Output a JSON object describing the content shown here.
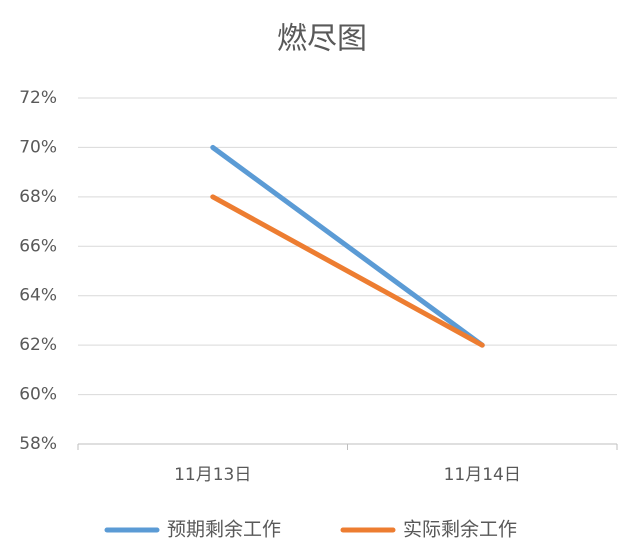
{
  "chart_data": {
    "type": "line",
    "title": "燃尽图",
    "categories": [
      "11月13日",
      "11月14日"
    ],
    "series": [
      {
        "name": "预期剩余工作",
        "color": "#5b9bd5",
        "values": [
          70,
          62
        ]
      },
      {
        "name": "实际剩余工作",
        "color": "#ed7d31",
        "values": [
          68,
          62
        ]
      }
    ],
    "ylim": [
      58,
      72
    ],
    "yticks": [
      {
        "value": 58,
        "label": "58%"
      },
      {
        "value": 60,
        "label": "60%"
      },
      {
        "value": 62,
        "label": "62%"
      },
      {
        "value": 64,
        "label": "64%"
      },
      {
        "value": 66,
        "label": "66%"
      },
      {
        "value": 68,
        "label": "68%"
      },
      {
        "value": 70,
        "label": "70%"
      },
      {
        "value": 72,
        "label": "72%"
      }
    ],
    "grid": true,
    "legend": "bottom"
  }
}
